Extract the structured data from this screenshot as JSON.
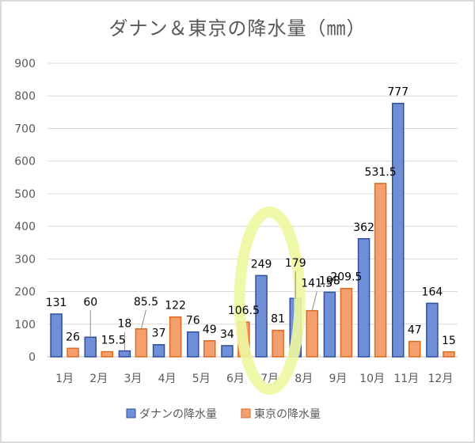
{
  "chart_data": {
    "type": "bar",
    "title": "ダナン＆東京の降水量（㎜）",
    "categories": [
      "1月",
      "2月",
      "3月",
      "4月",
      "5月",
      "6月",
      "7月",
      "8月",
      "9月",
      "10月",
      "11月",
      "12月"
    ],
    "series": [
      {
        "name": "ダナンの降水量",
        "values": [
          131,
          60,
          18,
          37,
          76,
          34,
          249,
          179,
          198,
          362,
          777,
          164
        ],
        "labels": [
          "131",
          "60",
          "18",
          "37",
          "76",
          "34",
          "249",
          "179",
          "198",
          "362",
          "777",
          "164"
        ],
        "color": "#6f8fd8"
      },
      {
        "name": "東京の降水量",
        "values": [
          26,
          15.5,
          85.5,
          122,
          49,
          106.5,
          81,
          141.5,
          209.5,
          531.5,
          47,
          15
        ],
        "labels": [
          "26",
          "15.5",
          "85.5",
          "122",
          "49",
          "106.5",
          "81",
          "141.5",
          "209.5",
          "531.5",
          "47",
          "15"
        ],
        "color": "#f4a06e"
      }
    ],
    "yticks": [
      "0",
      "100",
      "200",
      "300",
      "400",
      "500",
      "600",
      "700",
      "800",
      "900"
    ],
    "ylim": [
      0,
      900
    ],
    "grid": true,
    "legend": "bottom",
    "highlight": {
      "category": "7月",
      "shape": "ellipse",
      "color": "#eef7a0"
    }
  }
}
